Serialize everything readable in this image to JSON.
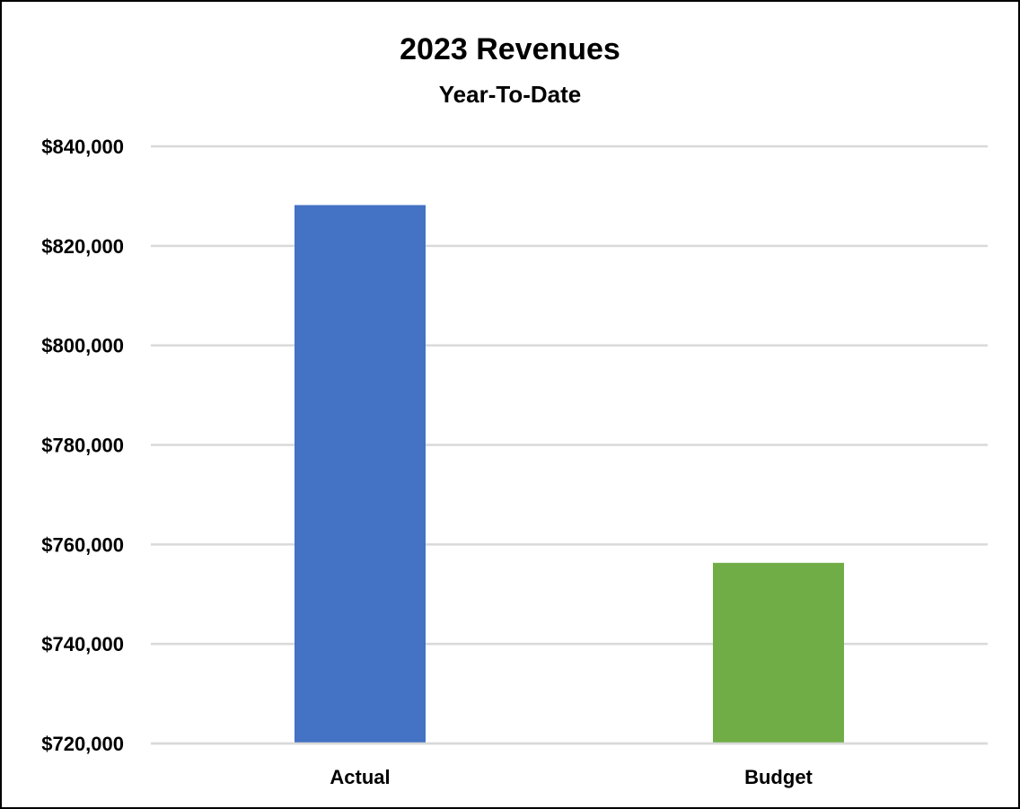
{
  "chart_data": {
    "type": "bar",
    "title": "2023 Revenues",
    "subtitle": "Year-To-Date",
    "xlabel": "",
    "ylabel": "",
    "categories": [
      "Actual",
      "Budget"
    ],
    "values": [
      828200,
      756300
    ],
    "colors": [
      "#4472c4",
      "#70ad47"
    ],
    "ylim": [
      720000,
      840000
    ],
    "yticks": [
      720000,
      740000,
      760000,
      780000,
      800000,
      820000,
      840000
    ],
    "ytick_labels": [
      "$720,000",
      "$740,000",
      "$760,000",
      "$780,000",
      "$800,000",
      "$820,000",
      "$840,000"
    ],
    "grid": true,
    "gridline_color": "#d9d9d9",
    "legend": "none"
  }
}
